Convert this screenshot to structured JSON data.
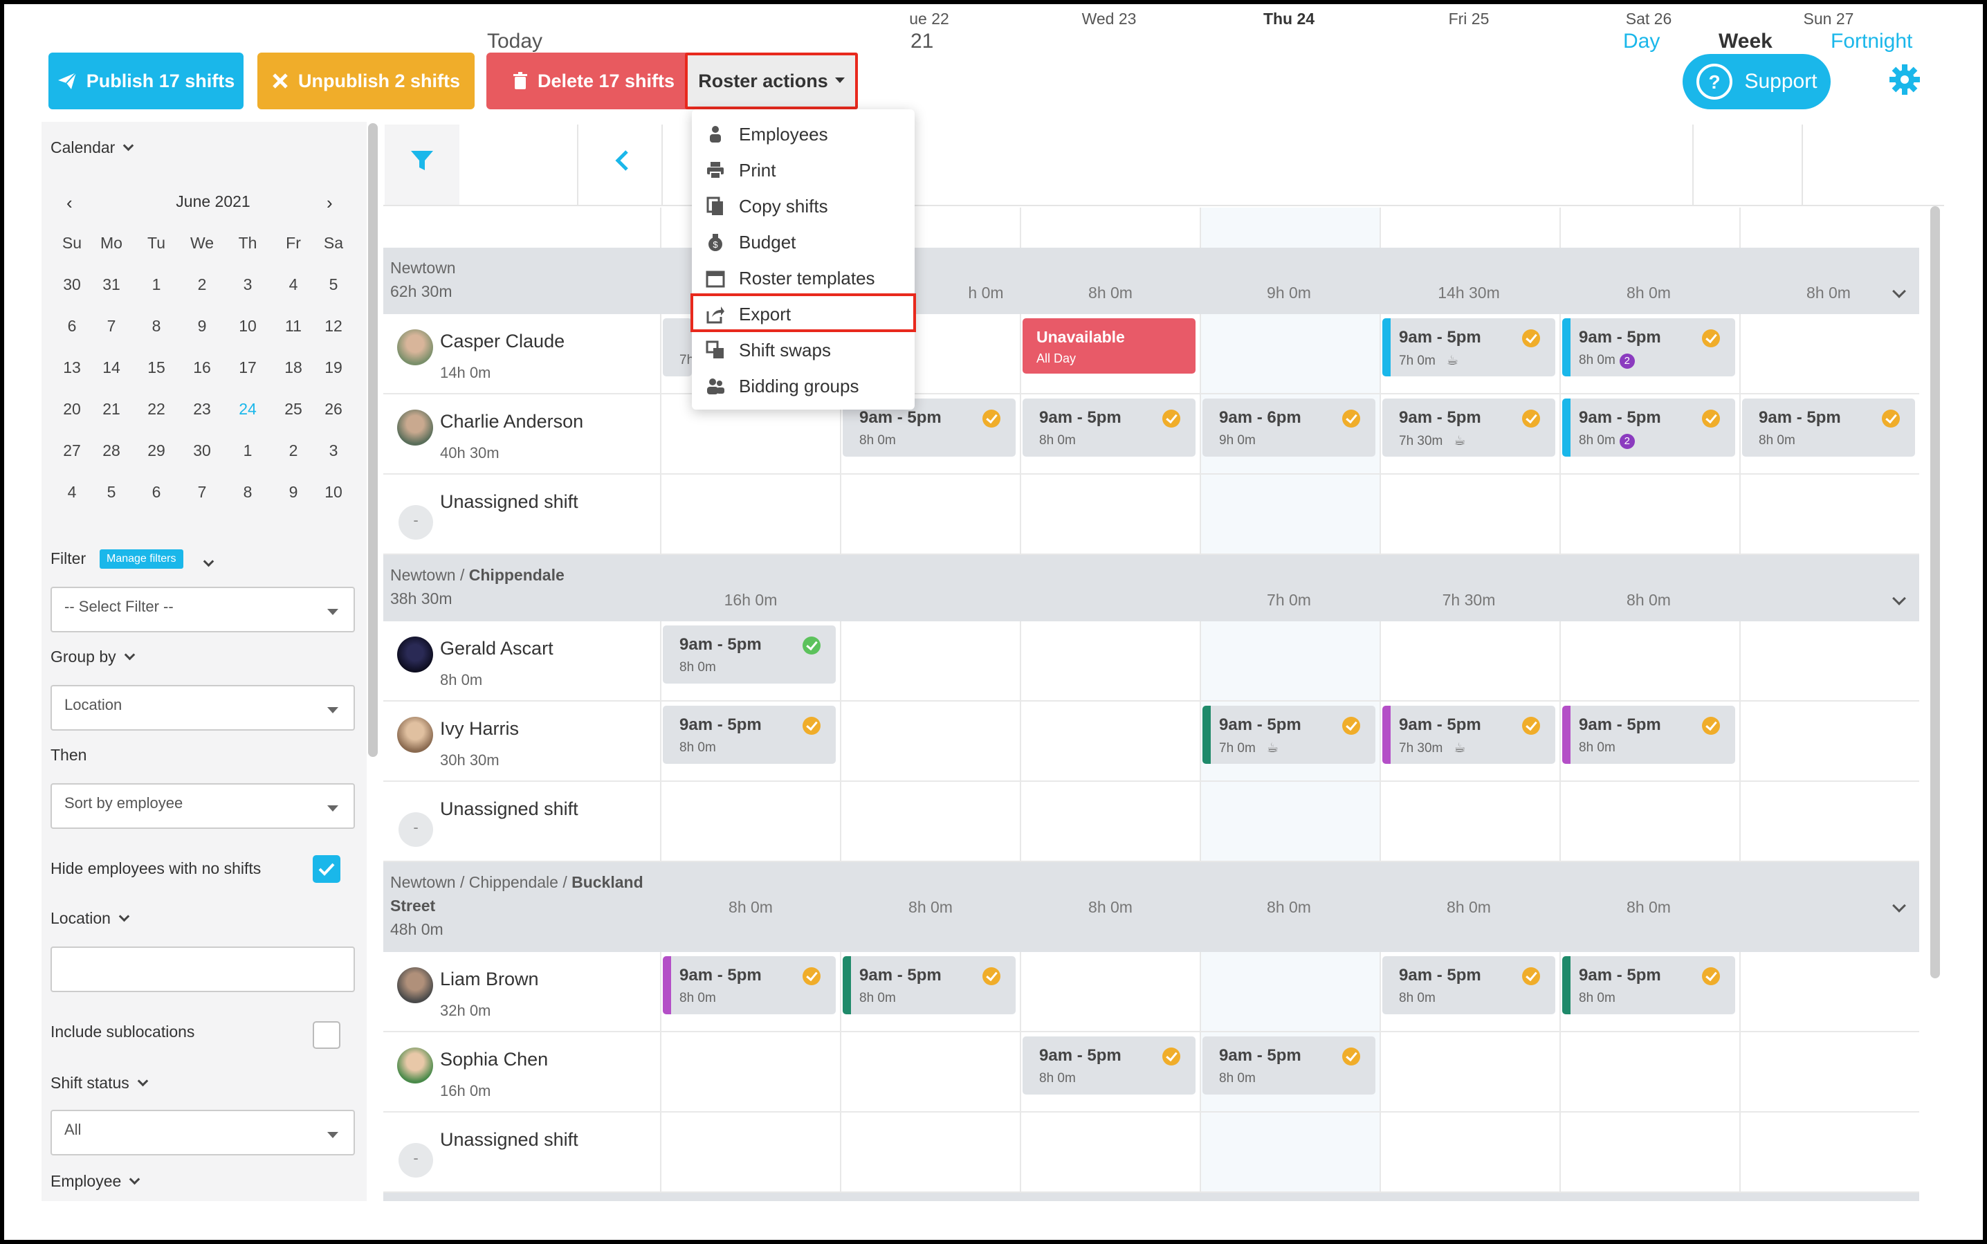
{
  "toolbar": {
    "publish_label": "Publish 17 shifts",
    "unpublish_label": "Unpublish 2 shifts",
    "delete_label": "Delete 17 shifts",
    "roster_actions_label": "Roster actions",
    "support_label": "Support"
  },
  "roster_menu": {
    "items": [
      {
        "label": "Employees",
        "icon": "employees-icon"
      },
      {
        "label": "Print",
        "icon": "print-icon"
      },
      {
        "label": "Copy shifts",
        "icon": "copy-icon"
      },
      {
        "label": "Budget",
        "icon": "budget-icon"
      },
      {
        "label": "Roster templates",
        "icon": "calendar-icon"
      },
      {
        "label": "Export",
        "icon": "export-icon"
      },
      {
        "label": "Shift swaps",
        "icon": "swap-icon"
      },
      {
        "label": "Bidding groups",
        "icon": "group-icon"
      }
    ],
    "highlighted": "Export"
  },
  "sidebar": {
    "calendar_label": "Calendar",
    "month_label": "June 2021",
    "weekdays": [
      "Su",
      "Mo",
      "Tu",
      "We",
      "Th",
      "Fr",
      "Sa"
    ],
    "weeks": [
      [
        "30",
        "31",
        "1",
        "2",
        "3",
        "4",
        "5"
      ],
      [
        "6",
        "7",
        "8",
        "9",
        "10",
        "11",
        "12"
      ],
      [
        "13",
        "14",
        "15",
        "16",
        "17",
        "18",
        "19"
      ],
      [
        "20",
        "21",
        "22",
        "23",
        "24",
        "25",
        "26"
      ],
      [
        "27",
        "28",
        "29",
        "30",
        "1",
        "2",
        "3"
      ],
      [
        "4",
        "5",
        "6",
        "7",
        "8",
        "9",
        "10"
      ]
    ],
    "today_day": "24",
    "filter_label": "Filter",
    "manage_filters_label": "Manage filters",
    "filter_placeholder": "-- Select Filter --",
    "group_by_label": "Group by",
    "group_by_value": "Location",
    "then_label": "Then",
    "then_value": "Sort by employee",
    "hide_employees_label": "Hide employees with no shifts",
    "hide_employees_checked": true,
    "location_label": "Location",
    "location_value": "",
    "include_sublocations_label": "Include sublocations",
    "include_sublocations_checked": false,
    "shift_status_label": "Shift status",
    "shift_status_value": "All",
    "employee_label": "Employee"
  },
  "nav": {
    "today_label": "Today",
    "range_fragment": "21",
    "views": [
      "Day",
      "Week",
      "Fortnight"
    ],
    "active_view": "Week"
  },
  "days": [
    "ue 22",
    "Wed 23",
    "Thu 24",
    "Fri 25",
    "Sat 26",
    "Sun 27"
  ],
  "colors": {
    "primary": "#1ab7ea",
    "warning": "#f0ad2a",
    "danger": "#e85a5f",
    "highlight_border": "#e8291d",
    "status_pending": "#f0ad2a",
    "status_ok": "#5cc25c"
  },
  "groups": [
    {
      "path": "Newtown",
      "path_bold": "",
      "total": "62h 30m",
      "day_totals": [
        "h 0m",
        "8h 0m",
        "9h 0m",
        "14h 30m",
        "8h 0m",
        "8h 0m"
      ],
      "rows": [
        {
          "name": "Casper Claude",
          "hours": "14h 0m"
        },
        {
          "name": "Charlie Anderson",
          "hours": "40h 30m"
        },
        {
          "name": "Unassigned shift",
          "hours": ""
        }
      ]
    },
    {
      "path": "Newtown / ",
      "path_bold": "Chippendale",
      "total": "38h 30m",
      "day_totals": [
        "16h 0m",
        "7h 0m",
        "7h 30m",
        "8h 0m"
      ],
      "rows": [
        {
          "name": "Gerald Ascart",
          "hours": "8h 0m"
        },
        {
          "name": "Ivy Harris",
          "hours": "30h 30m"
        },
        {
          "name": "Unassigned shift",
          "hours": ""
        }
      ]
    },
    {
      "path": "Newtown / Chippendale / ",
      "path_bold": "Buckland",
      "path_line2": "Street",
      "total": "48h 0m",
      "day_totals": [
        "8h 0m",
        "8h 0m",
        "8h 0m",
        "8h 0m",
        "8h 0m",
        "8h 0m"
      ],
      "rows": [
        {
          "name": "Liam Brown",
          "hours": "32h 0m"
        },
        {
          "name": "Sophia Chen",
          "hours": "16h 0m"
        },
        {
          "name": "Unassigned shift",
          "hours": ""
        }
      ]
    }
  ],
  "shifts": {
    "time": "9am - 5pm",
    "time_alt": "9am - 6pm",
    "d8": "8h 0m",
    "d7": "7h 0m",
    "d9": "9h 0m",
    "d730": "7h 30m",
    "badge_count": "2",
    "partial": "7h",
    "unavailable_title": "Unavailable",
    "unavailable_sub": "All Day"
  }
}
